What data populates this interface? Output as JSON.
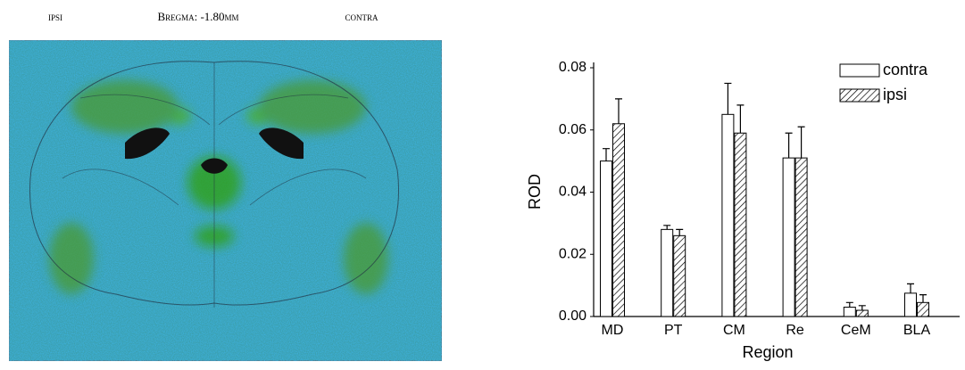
{
  "image_panel": {
    "labels": [
      "ipsi",
      "Bregma: -1.80mm",
      "contra"
    ]
  },
  "chart_data": {
    "type": "bar",
    "y_label": "ROD",
    "x_label": "Region",
    "categories": [
      "MD",
      "PT",
      "CM",
      "Re",
      "CeM",
      "BLA"
    ],
    "series": [
      {
        "name": "contra",
        "color": "#ffffff",
        "hatch": false,
        "values": [
          0.05,
          0.028,
          0.065,
          0.051,
          0.003,
          0.0075
        ],
        "errors": [
          0.004,
          0.0013,
          0.01,
          0.008,
          0.0015,
          0.003
        ]
      },
      {
        "name": "ipsi",
        "color": "#ffffff",
        "hatch": true,
        "values": [
          0.062,
          0.026,
          0.059,
          0.051,
          0.002,
          0.0045
        ],
        "errors": [
          0.008,
          0.002,
          0.009,
          0.01,
          0.0015,
          0.0025
        ]
      }
    ],
    "ylim": [
      0,
      0.08
    ],
    "yticks": [
      {
        "value": 0,
        "label": "0.00"
      },
      {
        "value": 0.02,
        "label": "0.02"
      },
      {
        "value": 0.04,
        "label": "0.04"
      },
      {
        "value": 0.06,
        "label": "0.06"
      },
      {
        "value": 0.08,
        "label": "0.08"
      }
    ],
    "grid": false,
    "legend": "top-right"
  }
}
